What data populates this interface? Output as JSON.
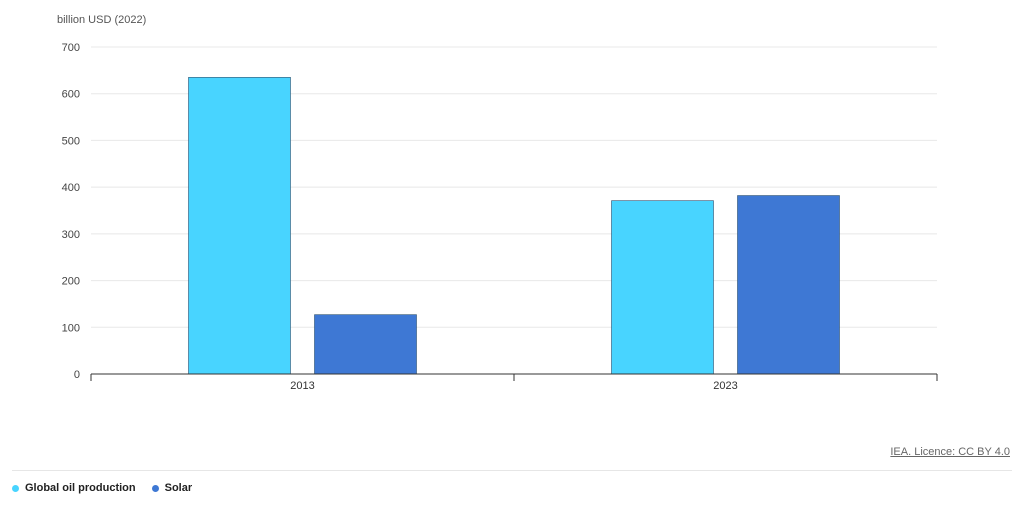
{
  "chart_data": {
    "type": "bar",
    "ylabel": "billion USD (2022)",
    "categories": [
      "2013",
      "2023"
    ],
    "ylim": [
      0,
      700
    ],
    "yticks": [
      0,
      100,
      200,
      300,
      400,
      500,
      600,
      700
    ],
    "grid": true,
    "legend_position": "bottom-left",
    "series": [
      {
        "name": "Global oil production",
        "color": "#48d4ff",
        "values": [
          635,
          371
        ]
      },
      {
        "name": "Solar",
        "color": "#3e78d4",
        "values": [
          127,
          382
        ]
      }
    ]
  },
  "source": "IEA. Licence: CC BY 4.0"
}
